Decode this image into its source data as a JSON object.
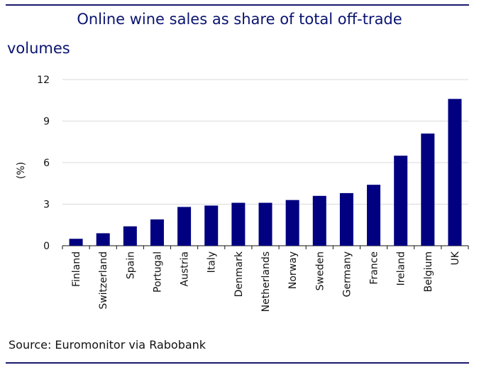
{
  "title_line_1": "Online wine sales as share of total off-trade",
  "title_line_2": "volumes",
  "source": "Source: Euromonitor via Rabobank",
  "colors": {
    "bar": "#000080",
    "rule": "#1a1a6e",
    "title": "#0a1470",
    "grid": "#d9d9d9"
  },
  "chart_data": {
    "type": "bar",
    "title": "Online wine sales as share of total off-trade volumes",
    "ylabel": "(%)",
    "xlabel": "",
    "ylim": [
      0,
      12
    ],
    "yticks": [
      0,
      3,
      6,
      9,
      12
    ],
    "grid": "horizontal",
    "categories": [
      "Finland",
      "Switzerland",
      "Spain",
      "Portugal",
      "Austria",
      "Italy",
      "Denmark",
      "Netherlands",
      "Norway",
      "Sweden",
      "Germany",
      "France",
      "Ireland",
      "Belgium",
      "UK"
    ],
    "values": [
      0.5,
      0.9,
      1.4,
      1.9,
      2.8,
      2.9,
      3.1,
      3.1,
      3.3,
      3.6,
      3.8,
      4.4,
      6.5,
      8.1,
      10.6
    ]
  }
}
